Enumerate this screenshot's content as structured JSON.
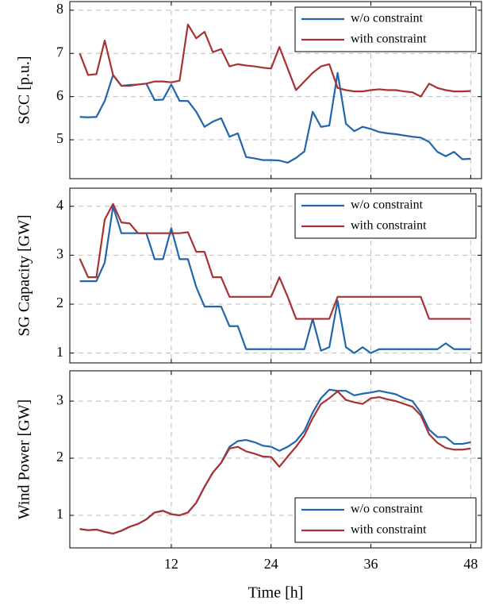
{
  "chart_data": [
    {
      "type": "line",
      "ylabel": "SCC [p.u.]",
      "x": [
        1,
        2,
        3,
        4,
        5,
        6,
        7,
        8,
        9,
        10,
        11,
        12,
        13,
        14,
        15,
        16,
        17,
        18,
        19,
        20,
        21,
        22,
        23,
        24,
        25,
        26,
        27,
        28,
        29,
        30,
        31,
        32,
        33,
        34,
        35,
        36,
        37,
        38,
        39,
        40,
        41,
        42,
        43,
        44,
        45,
        46,
        47,
        48
      ],
      "series": [
        {
          "name": "w/o constraint",
          "color": "#2166ac",
          "values": [
            5.53,
            5.52,
            5.53,
            5.9,
            6.5,
            6.25,
            6.27,
            6.28,
            6.3,
            5.92,
            5.93,
            6.28,
            5.9,
            5.9,
            5.65,
            5.3,
            5.42,
            5.5,
            5.07,
            5.15,
            4.6,
            4.57,
            4.53,
            4.53,
            4.52,
            4.47,
            4.58,
            4.73,
            5.65,
            5.3,
            5.33,
            6.55,
            5.37,
            5.2,
            5.3,
            5.25,
            5.18,
            5.15,
            5.13,
            5.1,
            5.07,
            5.05,
            4.95,
            4.72,
            4.62,
            4.72,
            4.55,
            4.56
          ]
        },
        {
          "name": "with constraint",
          "color": "#a83232",
          "values": [
            7.0,
            6.5,
            6.52,
            7.3,
            6.5,
            6.25,
            6.25,
            6.28,
            6.3,
            6.35,
            6.35,
            6.33,
            6.37,
            7.67,
            7.35,
            7.5,
            7.03,
            7.1,
            6.7,
            6.75,
            6.72,
            6.7,
            6.67,
            6.65,
            7.15,
            6.65,
            6.15,
            6.35,
            6.55,
            6.7,
            6.75,
            6.2,
            6.15,
            6.12,
            6.12,
            6.15,
            6.17,
            6.15,
            6.15,
            6.12,
            6.1,
            6.0,
            6.3,
            6.2,
            6.15,
            6.12,
            6.12,
            6.13
          ]
        }
      ],
      "xlim": [
        -0.2,
        49.3
      ],
      "ylim": [
        4.1,
        8.2
      ],
      "xticks": [
        12,
        24,
        36,
        48
      ],
      "yticks": [
        5,
        6,
        7,
        8
      ],
      "grid": true,
      "legend": "upper right"
    },
    {
      "type": "line",
      "ylabel": "SG Capacity [GW]",
      "x": [
        1,
        2,
        3,
        4,
        5,
        6,
        7,
        8,
        9,
        10,
        11,
        12,
        13,
        14,
        15,
        16,
        17,
        18,
        19,
        20,
        21,
        22,
        23,
        24,
        25,
        26,
        27,
        28,
        29,
        30,
        31,
        32,
        33,
        34,
        35,
        36,
        37,
        38,
        39,
        40,
        41,
        42,
        43,
        44,
        45,
        46,
        47,
        48
      ],
      "series": [
        {
          "name": "w/o constraint",
          "color": "#2166ac",
          "values": [
            2.47,
            2.47,
            2.47,
            2.85,
            4.0,
            3.45,
            3.45,
            3.45,
            3.45,
            2.92,
            2.92,
            3.55,
            2.92,
            2.92,
            2.35,
            1.95,
            1.95,
            1.95,
            1.55,
            1.55,
            1.08,
            1.08,
            1.08,
            1.08,
            1.08,
            1.08,
            1.08,
            1.08,
            1.7,
            1.05,
            1.12,
            2.07,
            1.12,
            1.0,
            1.12,
            1.0,
            1.08,
            1.08,
            1.08,
            1.08,
            1.08,
            1.08,
            1.08,
            1.08,
            1.2,
            1.08,
            1.08,
            1.08
          ]
        },
        {
          "name": "with constraint",
          "color": "#a83232",
          "values": [
            2.93,
            2.55,
            2.55,
            3.73,
            4.05,
            3.67,
            3.65,
            3.45,
            3.45,
            3.45,
            3.45,
            3.45,
            3.45,
            3.47,
            3.07,
            3.07,
            2.55,
            2.55,
            2.15,
            2.15,
            2.15,
            2.15,
            2.15,
            2.15,
            2.55,
            2.15,
            1.7,
            1.7,
            1.7,
            1.7,
            1.7,
            2.15,
            2.15,
            2.15,
            2.15,
            2.15,
            2.15,
            2.15,
            2.15,
            2.15,
            2.15,
            2.15,
            1.7,
            1.7,
            1.7,
            1.7,
            1.7,
            1.7
          ]
        }
      ],
      "xlim": [
        -0.2,
        49.3
      ],
      "ylim": [
        0.8,
        4.37
      ],
      "xticks": [
        12,
        24,
        36,
        48
      ],
      "yticks": [
        1,
        2,
        3,
        4
      ],
      "grid": true,
      "legend": "upper right"
    },
    {
      "type": "line",
      "ylabel": "Wind Power [GW]",
      "xlabel": "Time [h]",
      "x": [
        1,
        2,
        3,
        4,
        5,
        6,
        7,
        8,
        9,
        10,
        11,
        12,
        13,
        14,
        15,
        16,
        17,
        18,
        19,
        20,
        21,
        22,
        23,
        24,
        25,
        26,
        27,
        28,
        29,
        30,
        31,
        32,
        33,
        34,
        35,
        36,
        37,
        38,
        39,
        40,
        41,
        42,
        43,
        44,
        45,
        46,
        47,
        48
      ],
      "series": [
        {
          "name": "w/o constraint",
          "color": "#2166ac",
          "values": [
            0.76,
            0.74,
            0.75,
            0.71,
            0.68,
            0.73,
            0.8,
            0.85,
            0.93,
            1.05,
            1.08,
            1.02,
            1.0,
            1.05,
            1.22,
            1.5,
            1.75,
            1.92,
            2.2,
            2.3,
            2.32,
            2.28,
            2.22,
            2.2,
            2.13,
            2.2,
            2.3,
            2.48,
            2.8,
            3.05,
            3.2,
            3.18,
            3.18,
            3.1,
            3.13,
            3.15,
            3.18,
            3.15,
            3.12,
            3.05,
            3.0,
            2.8,
            2.5,
            2.37,
            2.37,
            2.25,
            2.25,
            2.28
          ]
        },
        {
          "name": "with constraint",
          "color": "#a83232",
          "values": [
            0.76,
            0.74,
            0.75,
            0.71,
            0.68,
            0.73,
            0.8,
            0.85,
            0.93,
            1.05,
            1.08,
            1.02,
            1.0,
            1.05,
            1.22,
            1.5,
            1.75,
            1.92,
            2.17,
            2.2,
            2.12,
            2.08,
            2.03,
            2.02,
            1.85,
            2.03,
            2.2,
            2.4,
            2.7,
            2.95,
            3.05,
            3.17,
            3.02,
            2.98,
            2.95,
            3.05,
            3.07,
            3.03,
            3.0,
            2.95,
            2.9,
            2.75,
            2.42,
            2.27,
            2.18,
            2.15,
            2.15,
            2.17
          ]
        }
      ],
      "xlim": [
        -0.2,
        49.3
      ],
      "ylim": [
        0.43,
        3.53
      ],
      "xticks": [
        12,
        24,
        36,
        48
      ],
      "yticks": [
        1,
        2,
        3
      ],
      "grid": true,
      "legend": "lower right"
    }
  ]
}
